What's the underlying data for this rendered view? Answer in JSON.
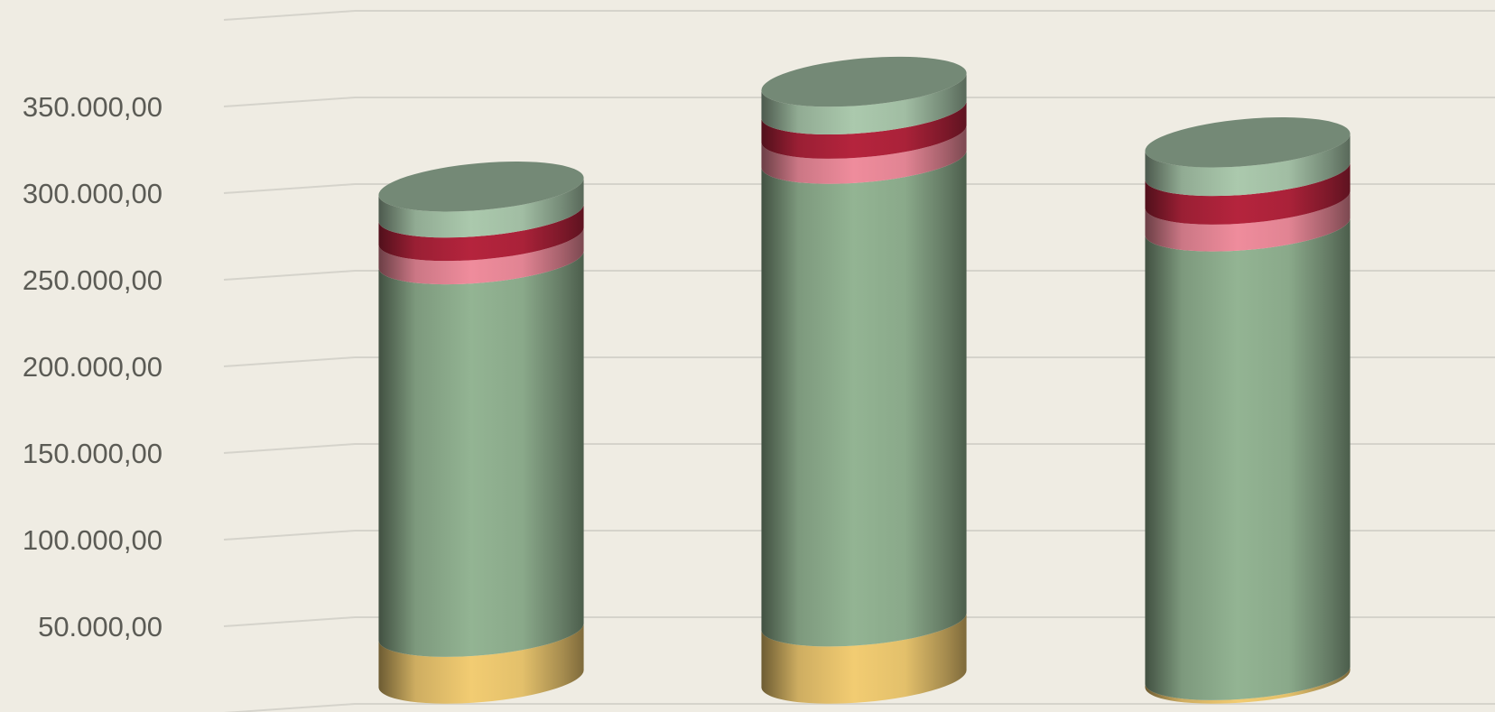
{
  "chart_data": {
    "type": "bar",
    "style": "3d-stacked-cylinder",
    "categories": [
      "",
      "",
      ""
    ],
    "series": [
      {
        "color": "#f2cc72",
        "values": [
          27000,
          33000,
          2000
        ]
      },
      {
        "color": "#93b493",
        "values": [
          215000,
          267000,
          259000
        ]
      },
      {
        "color": "#ef8c9c",
        "values": [
          13500,
          14500,
          15500
        ]
      },
      {
        "color": "#b5243d",
        "values": [
          13500,
          14000,
          16500
        ]
      },
      {
        "color": "#abc9ad",
        "values": [
          15000,
          16000,
          16500
        ]
      }
    ],
    "y_ticks": [
      "50.000,00",
      "100.000,00",
      "150.000,00",
      "200.000,00",
      "250.000,00",
      "300.000,00",
      "350.000,00"
    ],
    "ylim": [
      0,
      400000
    ],
    "grid": true,
    "legend": "none"
  }
}
